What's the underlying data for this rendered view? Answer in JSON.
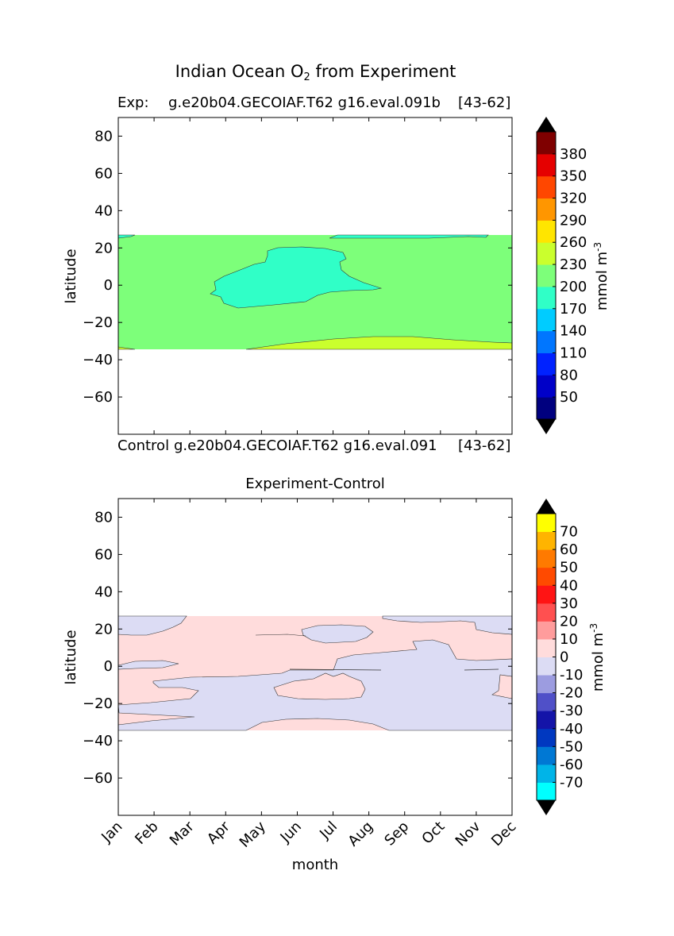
{
  "figure": {
    "title_main": "Indian Ocean O",
    "title_sub": "2",
    "title_rest": " from Experiment"
  },
  "panel1": {
    "left_label": "Exp:",
    "center_label": "g.e20b04.GECOIAF.T62 g16.eval.091b",
    "right_label": "[43-62]",
    "ylabel": "latitude"
  },
  "panel1_bottom_labels": {
    "left_label": "Control",
    "center_label": "g.e20b04.GECOIAF.T62 g16.eval.091",
    "right_label": "[43-62]"
  },
  "panel2": {
    "title": "Experiment-Control",
    "ylabel": "latitude",
    "xlabel": "month"
  },
  "colorbar1": {
    "units": "mmol m",
    "units_sup": "-3",
    "colors": [
      "#00007f",
      "#0000c8",
      "#0022ff",
      "#0076ff",
      "#00ccff",
      "#30ffc7",
      "#7dff7a",
      "#caff2d",
      "#ffe500",
      "#ff9600",
      "#ff4700",
      "#e50000",
      "#7f0000"
    ],
    "extend_low": "#000000",
    "extend_high": "#000000",
    "tick_labels": [
      "50",
      "80",
      "110",
      "140",
      "170",
      "200",
      "230",
      "260",
      "290",
      "320",
      "350",
      "380"
    ]
  },
  "colorbar2": {
    "units": "mmol m",
    "units_sup": "-3",
    "colors": [
      "#00ffff",
      "#00b4e8",
      "#0078d4",
      "#0038c0",
      "#1414a8",
      "#5050c8",
      "#9c9ce0",
      "#dcdcf4",
      "#ffdcdc",
      "#ff9c9c",
      "#ff5050",
      "#ff1414",
      "#ff4a00",
      "#ff7a00",
      "#ffb400",
      "#ffff00"
    ],
    "extend_low": "#000000",
    "extend_high": "#000000",
    "tick_labels": [
      "-70",
      "-60",
      "-50",
      "-40",
      "-30",
      "-20",
      "-10",
      "0",
      "10",
      "20",
      "30",
      "40",
      "50",
      "60",
      "70"
    ]
  },
  "chart_data": [
    {
      "type": "heatmap",
      "title": "Indian Ocean O2 from Experiment",
      "ylabel": "latitude",
      "xlabel": "",
      "ylim": [
        -80,
        90
      ],
      "xlim": [
        0,
        11
      ],
      "y_ticks": [
        80,
        60,
        40,
        20,
        0,
        -20,
        -40,
        -60
      ],
      "data_lat_range": [
        -34,
        27
      ],
      "units": "mmol m-3",
      "regions": [
        {
          "name": "200-230 band (background)",
          "level_range": [
            200,
            230
          ],
          "color": "#7dff7a"
        },
        {
          "name": "170-200 patch near equator",
          "level_range": [
            170,
            200
          ],
          "color": "#30ffc7"
        },
        {
          "name": "230-260 band in south",
          "level_range": [
            230,
            260
          ],
          "color": "#caff2d"
        }
      ]
    },
    {
      "type": "heatmap",
      "title": "Experiment-Control",
      "ylabel": "latitude",
      "xlabel": "month",
      "ylim": [
        -80,
        90
      ],
      "x_ticks": [
        "Jan",
        "Feb",
        "Mar",
        "Apr",
        "May",
        "Jun",
        "Jul",
        "Aug",
        "Sep",
        "Oct",
        "Nov",
        "Dec"
      ],
      "y_ticks": [
        80,
        60,
        40,
        20,
        0,
        -20,
        -40,
        -60
      ],
      "data_lat_range": [
        -34,
        27
      ],
      "units": "mmol m-3",
      "regions": [
        {
          "name": "positive 0 to 10",
          "level_range": [
            0,
            10
          ],
          "color": "#ffdcdc"
        },
        {
          "name": "negative -10 to 0",
          "level_range": [
            -10,
            0
          ],
          "color": "#dcdcf4"
        }
      ]
    }
  ]
}
